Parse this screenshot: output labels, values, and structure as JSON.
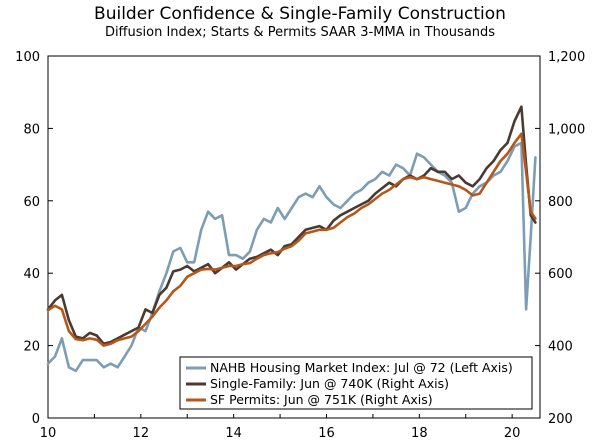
{
  "chart_data": {
    "type": "line",
    "title": "Builder Confidence & Single-Family Construction",
    "subtitle": "Diffusion Index; Starts & Permits SAAR 3-MMA in Thousands",
    "x_ticks": [
      "10",
      "12",
      "14",
      "16",
      "18",
      "20"
    ],
    "x_range": [
      2010,
      2020.6
    ],
    "left_axis": {
      "range": [
        0,
        100
      ],
      "ticks": [
        "0",
        "20",
        "40",
        "60",
        "80",
        "100"
      ]
    },
    "right_axis": {
      "range": [
        200,
        1200
      ],
      "ticks": [
        "200",
        "400",
        "600",
        "800",
        "1,000",
        "1,200"
      ]
    },
    "colors": {
      "nahb": "#7d9db5",
      "single_family": "#4b3a32",
      "permits": "#b5571a"
    },
    "series": [
      {
        "name": "NAHB Housing Market Index: Jul @ 72 (Left Axis)",
        "axis": "left",
        "x": [
          2010.0,
          2010.15,
          2010.3,
          2010.45,
          2010.6,
          2010.75,
          2010.9,
          2011.05,
          2011.2,
          2011.35,
          2011.5,
          2011.65,
          2011.8,
          2011.95,
          2012.1,
          2012.25,
          2012.4,
          2012.55,
          2012.7,
          2012.85,
          2013.0,
          2013.15,
          2013.3,
          2013.45,
          2013.6,
          2013.75,
          2013.9,
          2014.05,
          2014.2,
          2014.35,
          2014.5,
          2014.65,
          2014.8,
          2014.95,
          2015.1,
          2015.25,
          2015.4,
          2015.55,
          2015.7,
          2015.85,
          2016.0,
          2016.15,
          2016.3,
          2016.45,
          2016.6,
          2016.75,
          2016.9,
          2017.05,
          2017.2,
          2017.35,
          2017.5,
          2017.65,
          2017.8,
          2017.95,
          2018.1,
          2018.25,
          2018.4,
          2018.55,
          2018.7,
          2018.85,
          2019.0,
          2019.15,
          2019.3,
          2019.45,
          2019.6,
          2019.75,
          2019.9,
          2020.05,
          2020.2,
          2020.3,
          2020.4,
          2020.5
        ],
        "values": [
          15,
          17,
          22,
          14,
          13,
          16,
          16,
          16,
          14,
          15,
          14,
          17,
          20,
          25,
          24,
          29,
          35,
          40,
          46,
          47,
          43,
          43,
          52,
          57,
          55,
          56,
          45,
          45,
          44,
          46,
          52,
          55,
          54,
          58,
          55,
          58,
          61,
          62,
          61,
          64,
          61,
          59,
          58,
          60,
          62,
          63,
          65,
          66,
          68,
          67,
          70,
          69,
          67,
          73,
          72,
          70,
          68,
          67,
          65,
          57,
          58,
          62,
          64,
          65,
          67,
          68,
          71,
          75,
          76,
          30,
          50,
          72
        ]
      },
      {
        "name": "Single-Family: Jun @ 740K (Right Axis)",
        "axis": "right",
        "x": [
          2010.0,
          2010.15,
          2010.3,
          2010.45,
          2010.6,
          2010.75,
          2010.9,
          2011.05,
          2011.2,
          2011.35,
          2011.5,
          2011.65,
          2011.8,
          2011.95,
          2012.1,
          2012.25,
          2012.4,
          2012.55,
          2012.7,
          2012.85,
          2013.0,
          2013.15,
          2013.3,
          2013.45,
          2013.6,
          2013.75,
          2013.9,
          2014.05,
          2014.2,
          2014.35,
          2014.5,
          2014.65,
          2014.8,
          2014.95,
          2015.1,
          2015.25,
          2015.4,
          2015.55,
          2015.7,
          2015.85,
          2016.0,
          2016.15,
          2016.3,
          2016.45,
          2016.6,
          2016.75,
          2016.9,
          2017.05,
          2017.2,
          2017.35,
          2017.5,
          2017.65,
          2017.8,
          2017.95,
          2018.1,
          2018.25,
          2018.4,
          2018.55,
          2018.7,
          2018.85,
          2019.0,
          2019.15,
          2019.3,
          2019.45,
          2019.6,
          2019.75,
          2019.9,
          2020.05,
          2020.2,
          2020.3,
          2020.4,
          2020.5
        ],
        "values": [
          500,
          525,
          540,
          470,
          425,
          420,
          435,
          428,
          405,
          410,
          420,
          430,
          440,
          450,
          500,
          490,
          540,
          560,
          605,
          610,
          620,
          605,
          615,
          625,
          600,
          615,
          630,
          610,
          625,
          640,
          645,
          655,
          665,
          650,
          675,
          680,
          700,
          720,
          725,
          730,
          720,
          745,
          760,
          770,
          780,
          790,
          800,
          820,
          835,
          850,
          840,
          860,
          870,
          860,
          870,
          890,
          880,
          880,
          860,
          870,
          850,
          840,
          860,
          890,
          910,
          940,
          960,
          1020,
          1060,
          900,
          760,
          740
        ]
      },
      {
        "name": "SF Permits: Jun @ 751K (Right Axis)",
        "axis": "right",
        "x": [
          2010.0,
          2010.15,
          2010.3,
          2010.45,
          2010.6,
          2010.75,
          2010.9,
          2011.05,
          2011.2,
          2011.35,
          2011.5,
          2011.65,
          2011.8,
          2011.95,
          2012.1,
          2012.25,
          2012.4,
          2012.55,
          2012.7,
          2012.85,
          2013.0,
          2013.15,
          2013.3,
          2013.45,
          2013.6,
          2013.75,
          2013.9,
          2014.05,
          2014.2,
          2014.35,
          2014.5,
          2014.65,
          2014.8,
          2014.95,
          2015.1,
          2015.25,
          2015.4,
          2015.55,
          2015.7,
          2015.85,
          2016.0,
          2016.15,
          2016.3,
          2016.45,
          2016.6,
          2016.75,
          2016.9,
          2017.05,
          2017.2,
          2017.35,
          2017.5,
          2017.65,
          2017.8,
          2017.95,
          2018.1,
          2018.25,
          2018.4,
          2018.55,
          2018.7,
          2018.85,
          2019.0,
          2019.15,
          2019.3,
          2019.45,
          2019.6,
          2019.75,
          2019.9,
          2020.05,
          2020.2,
          2020.3,
          2020.4,
          2020.5
        ],
        "values": [
          498,
          510,
          500,
          440,
          418,
          415,
          420,
          416,
          400,
          405,
          415,
          420,
          425,
          440,
          460,
          480,
          505,
          525,
          550,
          565,
          590,
          600,
          610,
          612,
          610,
          615,
          620,
          620,
          625,
          628,
          640,
          650,
          655,
          658,
          668,
          675,
          690,
          710,
          715,
          720,
          720,
          725,
          740,
          755,
          765,
          780,
          790,
          805,
          820,
          830,
          845,
          860,
          865,
          860,
          865,
          860,
          855,
          850,
          845,
          840,
          830,
          815,
          820,
          850,
          880,
          910,
          930,
          960,
          985,
          880,
          770,
          751
        ]
      }
    ],
    "legend": [
      "NAHB Housing Market Index: Jul @ 72 (Left Axis)",
      "Single-Family: Jun @ 740K (Right Axis)",
      "SF Permits: Jun @ 751K (Right Axis)"
    ]
  }
}
